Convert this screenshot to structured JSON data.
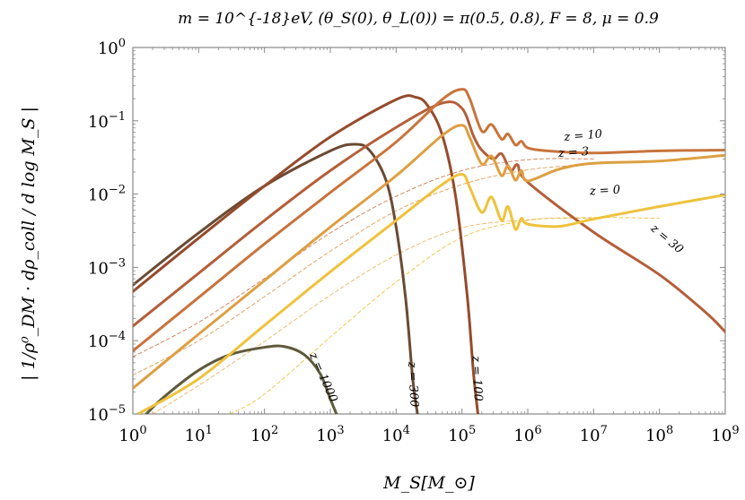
{
  "chart_data": {
    "type": "line",
    "title": "m = 10^{-18}eV, (θ_S(0), θ_L(0)) = π(0.5, 0.8), F = 8, μ = 0.9",
    "xlabel": "M_S[M_⊙]",
    "ylabel": "| 1/ρ⁰_DM · dρ_coll / d log M_S |",
    "x_scale": "log",
    "y_scale": "log",
    "xlim": [
      1,
      1000000000
    ],
    "ylim": [
      1e-05,
      1
    ],
    "x_ticks": [
      {
        "value": 1,
        "base": "10",
        "exp": "0"
      },
      {
        "value": 10,
        "base": "10",
        "exp": "1"
      },
      {
        "value": 100,
        "base": "10",
        "exp": "2"
      },
      {
        "value": 1000,
        "base": "10",
        "exp": "3"
      },
      {
        "value": 10000,
        "base": "10",
        "exp": "4"
      },
      {
        "value": 100000,
        "base": "10",
        "exp": "5"
      },
      {
        "value": 1000000,
        "base": "10",
        "exp": "6"
      },
      {
        "value": 10000000,
        "base": "10",
        "exp": "7"
      },
      {
        "value": 100000000,
        "base": "10",
        "exp": "8"
      },
      {
        "value": 1000000000,
        "base": "10",
        "exp": "9"
      }
    ],
    "y_ticks": [
      {
        "value": 1e-05,
        "base": "10",
        "exp": "−5"
      },
      {
        "value": 0.0001,
        "base": "10",
        "exp": "−4"
      },
      {
        "value": 0.001,
        "base": "10",
        "exp": "−3"
      },
      {
        "value": 0.01,
        "base": "10",
        "exp": "−2"
      },
      {
        "value": 0.1,
        "base": "10",
        "exp": "−1"
      },
      {
        "value": 1,
        "base": "10",
        "exp": "0"
      }
    ],
    "grid": false,
    "series": [
      {
        "name": "z = 1000",
        "style": "solid",
        "color": "#5e5a3a",
        "x": [
          1.6,
          3,
          10,
          30,
          100,
          200,
          400,
          700,
          1000,
          1300
        ],
        "y": [
          1e-05,
          1.72e-05,
          3.95e-05,
          6.45e-05,
          8.13e-05,
          8.32e-05,
          6.46e-05,
          3.55e-05,
          1.6e-05,
          9e-06
        ]
      },
      {
        "name": "z = 300",
        "style": "solid",
        "color": "#6b4a33",
        "x": [
          1,
          10,
          100,
          1000,
          2400,
          4000,
          7000,
          10000,
          14000,
          18000,
          22000
        ],
        "y": [
          0.000575,
          0.00295,
          0.0129,
          0.0389,
          0.0479,
          0.0389,
          0.0155,
          0.00355,
          0.000363,
          2.82e-05,
          8e-06
        ]
      },
      {
        "name": "z = 100",
        "style": "solid",
        "color": "#944b2c",
        "x": [
          1,
          10,
          100,
          1000,
          10000,
          20000,
          30000,
          50000,
          80000,
          120000,
          150000,
          180000
        ],
        "y": [
          0.000468,
          0.00251,
          0.0129,
          0.0603,
          0.195,
          0.209,
          0.162,
          0.0646,
          0.00933,
          0.000417,
          3.55e-05,
          8e-06
        ]
      },
      {
        "name": "z = 30",
        "style": "solid",
        "color": "#b35f3a",
        "x": [
          1,
          10,
          100,
          1000,
          10000,
          50000,
          100000,
          150000,
          200000,
          300000,
          400000,
          550000,
          700000,
          1000000,
          10000000,
          100000000,
          500000000,
          1000000000
        ],
        "y": [
          0.000158,
          0.000832,
          0.00437,
          0.0209,
          0.0813,
          0.174,
          0.148,
          0.0617,
          0.0398,
          0.0302,
          0.0355,
          0.0209,
          0.0251,
          0.0145,
          0.00302,
          0.000794,
          0.000245,
          0.000132
        ]
      },
      {
        "name": "z = 10",
        "style": "solid",
        "color": "#c8743c",
        "x": [
          1,
          10,
          100,
          1000,
          10000,
          50000,
          100000,
          130000,
          200000,
          280000,
          400000,
          500000,
          650000,
          800000,
          1000000,
          2000000,
          10000000,
          100000000,
          1000000000
        ],
        "y": [
          7.24e-05,
          0.000389,
          0.00209,
          0.0105,
          0.0513,
          0.195,
          0.269,
          0.204,
          0.0724,
          0.0891,
          0.0562,
          0.0661,
          0.0468,
          0.0525,
          0.0427,
          0.0389,
          0.0363,
          0.0389,
          0.0398
        ]
      },
      {
        "name": "z = 3",
        "style": "solid",
        "color": "#dd9f42",
        "x": [
          1,
          10,
          100,
          1000,
          10000,
          50000,
          100000,
          130000,
          200000,
          280000,
          400000,
          500000,
          650000,
          800000,
          1000000,
          3000000,
          10000000,
          100000000,
          1000000000
        ],
        "y": [
          2.24e-05,
          0.000123,
          0.000661,
          0.00355,
          0.0178,
          0.0631,
          0.0871,
          0.0603,
          0.0257,
          0.0331,
          0.0178,
          0.0245,
          0.0155,
          0.0209,
          0.0151,
          0.0219,
          0.0263,
          0.0282,
          0.0339
        ]
      },
      {
        "name": "z = 0",
        "style": "solid",
        "color": "#eec23c",
        "x": [
          1.2,
          10,
          100,
          1000,
          10000,
          50000,
          100000,
          130000,
          200000,
          280000,
          400000,
          500000,
          650000,
          800000,
          1000000,
          3000000,
          10000000,
          100000000,
          1000000000
        ],
        "y": [
          1e-05,
          3.02e-05,
          0.000162,
          0.000871,
          0.00437,
          0.0135,
          0.0186,
          0.0126,
          0.00562,
          0.00912,
          0.00436,
          0.00676,
          0.00331,
          0.00468,
          0.00389,
          0.00363,
          0.00457,
          0.00676,
          0.00977
        ]
      },
      {
        "name": "",
        "style": "dashed",
        "color": "#d2784a",
        "x": [
          1,
          10,
          100,
          1000,
          10000,
          100000,
          1000000,
          10000000
        ],
        "y": [
          6.03e-05,
          0.000178,
          0.000708,
          0.00295,
          0.00933,
          0.0209,
          0.0295,
          0.0302
        ]
      },
      {
        "name": "",
        "style": "dashed",
        "color": "#e39a52",
        "x": [
          1,
          10,
          100,
          1000,
          10000,
          100000,
          1000000,
          10000000
        ],
        "y": [
          3.39e-05,
          0.0001,
          0.000398,
          0.00166,
          0.00589,
          0.0135,
          0.0214,
          0.0257
        ]
      },
      {
        "name": "",
        "style": "dashed",
        "color": "#ebb560",
        "x": [
          2,
          10,
          100,
          1000,
          10000,
          100000,
          1000000,
          3000000,
          10000000
        ],
        "y": [
          1e-05,
          2.45e-05,
          9.77e-05,
          0.000417,
          0.00148,
          0.00347,
          0.00447,
          0.00468,
          0.00468
        ]
      },
      {
        "name": "",
        "style": "dashed",
        "color": "#eec23c",
        "x": [
          30,
          100,
          1000,
          10000,
          100000,
          1000000,
          10000000,
          100000000
        ],
        "y": [
          1e-05,
          1.86e-05,
          0.000112,
          0.000631,
          0.00257,
          0.00437,
          0.00479,
          0.00468
        ]
      }
    ],
    "annotations": [
      {
        "text": "z = 1000",
        "x": 700,
        "y": 3.02e-05,
        "rotate": 66
      },
      {
        "text": "z = 300",
        "x": 16000,
        "y": 2.51e-05,
        "rotate": 87
      },
      {
        "text": "z = 100",
        "x": 150000,
        "y": 3.02e-05,
        "rotate": 87
      },
      {
        "text": "z = 10",
        "x": 7000000,
        "y": 0.0562,
        "rotate": -5
      },
      {
        "text": "z = 3",
        "x": 5000000,
        "y": 0.0331,
        "rotate": -4
      },
      {
        "text": "z = 0",
        "x": 15000000,
        "y": 0.01,
        "rotate": -3
      },
      {
        "text": "z = 30",
        "x": 120000000,
        "y": 0.00224,
        "rotate": 40
      }
    ]
  }
}
